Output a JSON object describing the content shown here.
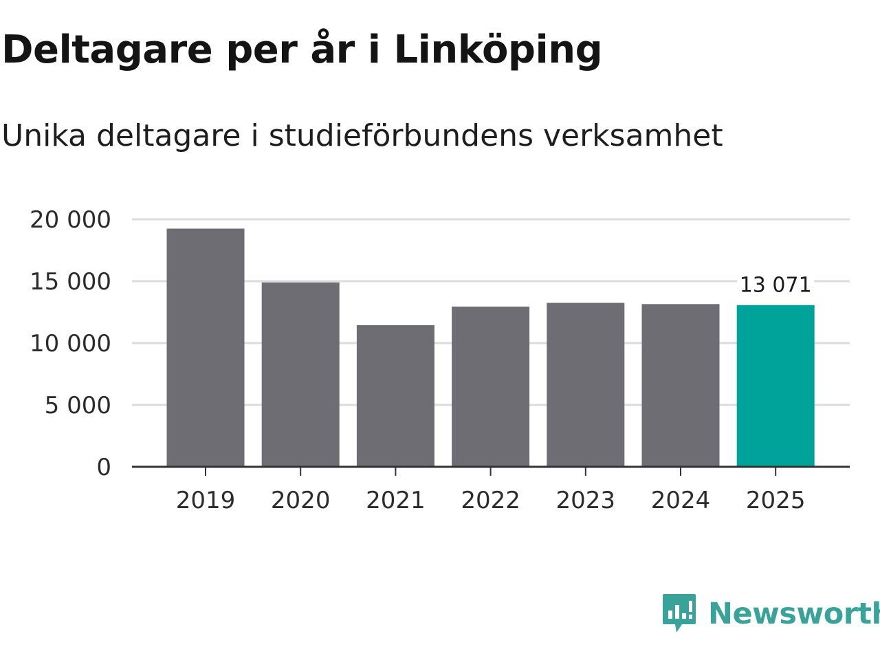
{
  "chart_data": {
    "type": "bar",
    "title": "Deltagare per år i Linköping",
    "subtitle": "Unika deltagare i studieförbundens verksamhet",
    "xlabel": "",
    "ylabel": "",
    "categories": [
      "2019",
      "2020",
      "2021",
      "2022",
      "2023",
      "2024",
      "2025"
    ],
    "values": [
      19250,
      14900,
      11450,
      12950,
      13250,
      13150,
      13071
    ],
    "ylim": [
      0,
      20000
    ],
    "yticks": [
      0,
      5000,
      10000,
      15000,
      20000
    ],
    "ytick_labels": [
      "0",
      "5 000",
      "10 000",
      "15 000",
      "20 000"
    ],
    "highlight_index": 6,
    "highlight_label": "13 071",
    "grid": true,
    "legend": "none"
  },
  "colors": {
    "bar": "#6e6d73",
    "highlight": "#00a39a",
    "grid": "#dcdcdc",
    "axis": "#333333",
    "logo": "#3aa399"
  },
  "branding": {
    "logo_text": "Newsworthy",
    "logo_icon": "bar-chart-speech-bubble-icon"
  }
}
